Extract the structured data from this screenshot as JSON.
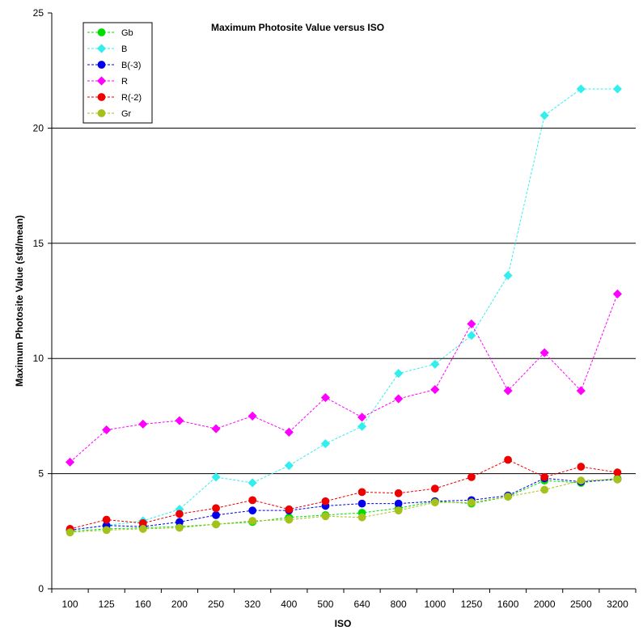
{
  "chart_data": {
    "type": "line",
    "title": "Maximum Photosite Value versus ISO",
    "xlabel": "ISO",
    "ylabel": "Maximum Photosite Value (std/mean)",
    "categories": [
      "100",
      "125",
      "160",
      "200",
      "250",
      "320",
      "400",
      "500",
      "640",
      "800",
      "1000",
      "1250",
      "1600",
      "2000",
      "2500",
      "3200"
    ],
    "ylim": [
      0,
      25
    ],
    "yticks": [
      0,
      5,
      10,
      15,
      20,
      25
    ],
    "grid": "horizontal gridlines at 5, 10, 15, 20",
    "legend_position": "top-left",
    "series": [
      {
        "name": "Gb",
        "color": "#00dd00",
        "marker": "circle",
        "values": [
          2.5,
          2.6,
          2.65,
          2.7,
          2.8,
          2.9,
          3.1,
          3.2,
          3.3,
          3.5,
          3.8,
          3.7,
          4.0,
          4.7,
          4.6,
          4.8
        ]
      },
      {
        "name": "B",
        "color": "#33eeee",
        "marker": "diamond",
        "values": [
          2.55,
          2.75,
          2.95,
          3.45,
          4.85,
          4.6,
          5.35,
          6.3,
          7.05,
          9.35,
          9.75,
          11.0,
          13.6,
          20.55,
          21.7,
          21.7
        ]
      },
      {
        "name": "B(-3)",
        "color": "#0000ee",
        "marker": "circle",
        "values": [
          2.55,
          2.75,
          2.7,
          2.9,
          3.2,
          3.4,
          3.4,
          3.6,
          3.7,
          3.7,
          3.8,
          3.85,
          4.05,
          4.8,
          4.65,
          4.75
        ]
      },
      {
        "name": "R",
        "color": "#ff00ff",
        "marker": "diamond",
        "values": [
          5.5,
          6.9,
          7.15,
          7.3,
          6.95,
          7.5,
          6.8,
          8.3,
          7.45,
          8.25,
          8.65,
          11.5,
          8.6,
          10.25,
          8.6,
          12.8
        ]
      },
      {
        "name": "R(-2)",
        "color": "#ee0000",
        "marker": "circle",
        "values": [
          2.6,
          3.0,
          2.85,
          3.25,
          3.5,
          3.85,
          3.45,
          3.8,
          4.2,
          4.15,
          4.35,
          4.85,
          5.6,
          4.85,
          5.3,
          5.05
        ]
      },
      {
        "name": "Gr",
        "color": "#a5c21a",
        "marker": "circle",
        "values": [
          2.45,
          2.55,
          2.6,
          2.65,
          2.8,
          2.95,
          3.0,
          3.15,
          3.1,
          3.4,
          3.75,
          3.75,
          4.0,
          4.3,
          4.7,
          4.75
        ]
      }
    ]
  }
}
